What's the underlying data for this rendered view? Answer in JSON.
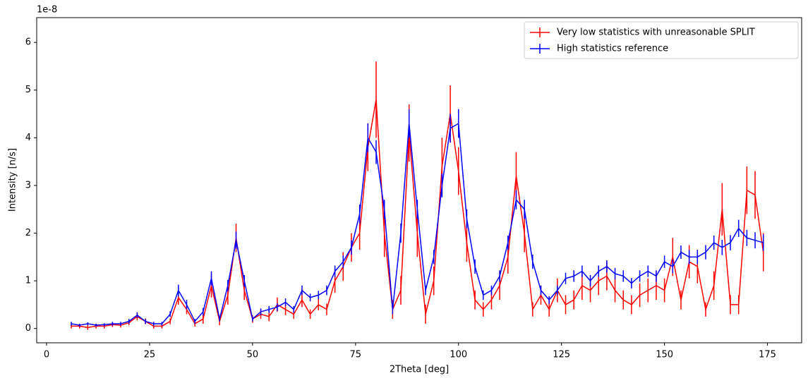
{
  "chart_data": {
    "type": "errorbar_line",
    "x_label": "2Theta [deg]",
    "y_label": "Intensity [n/s]",
    "y_offset_label": "1e-8",
    "xlim": [
      -2.4,
      183.3
    ],
    "ylim": [
      -0.3,
      6.52
    ],
    "xticks": [
      0,
      25,
      50,
      75,
      100,
      125,
      150,
      175
    ],
    "yticks": [
      0,
      1,
      2,
      3,
      4,
      5,
      6
    ],
    "legend": "upper right",
    "x": [
      6,
      8,
      10,
      12,
      14,
      16,
      18,
      20,
      22,
      24,
      26,
      28,
      30,
      32,
      34,
      36,
      38,
      40,
      42,
      44,
      46,
      48,
      50,
      52,
      54,
      56,
      58,
      60,
      62,
      64,
      66,
      68,
      70,
      72,
      74,
      76,
      78,
      80,
      82,
      84,
      86,
      88,
      90,
      92,
      94,
      96,
      98,
      100,
      102,
      104,
      106,
      108,
      110,
      112,
      114,
      116,
      118,
      120,
      122,
      124,
      126,
      128,
      130,
      132,
      134,
      136,
      138,
      140,
      142,
      144,
      146,
      148,
      150,
      152,
      154,
      156,
      158,
      160,
      162,
      164,
      166,
      168,
      170,
      172,
      174
    ],
    "series": [
      {
        "name": "Very low statistics with unreasonable SPLIT",
        "color": "#ff0000",
        "values": [
          0.05,
          0.05,
          0.02,
          0.05,
          0.05,
          0.08,
          0.07,
          0.12,
          0.25,
          0.15,
          0.05,
          0.05,
          0.15,
          0.65,
          0.4,
          0.1,
          0.2,
          0.9,
          0.15,
          0.7,
          1.9,
          0.8,
          0.2,
          0.3,
          0.25,
          0.5,
          0.4,
          0.3,
          0.6,
          0.3,
          0.5,
          0.4,
          1.0,
          1.3,
          1.7,
          2.0,
          3.8,
          4.8,
          2.0,
          0.4,
          0.8,
          4.1,
          2.0,
          0.3,
          1.0,
          3.4,
          4.5,
          3.3,
          1.8,
          0.6,
          0.4,
          0.6,
          0.9,
          1.5,
          3.2,
          2.0,
          0.4,
          0.7,
          0.4,
          0.8,
          0.5,
          0.6,
          0.9,
          0.8,
          1.0,
          1.1,
          0.8,
          0.6,
          0.5,
          0.7,
          0.8,
          0.9,
          0.8,
          1.5,
          0.6,
          1.4,
          1.3,
          0.4,
          0.9,
          2.5,
          0.5,
          0.5,
          2.9,
          2.8,
          1.6
        ],
        "errors": [
          0.05,
          0.05,
          0.05,
          0.05,
          0.05,
          0.05,
          0.05,
          0.05,
          0.08,
          0.06,
          0.05,
          0.05,
          0.06,
          0.15,
          0.1,
          0.06,
          0.1,
          0.25,
          0.08,
          0.2,
          0.3,
          0.2,
          0.08,
          0.1,
          0.1,
          0.15,
          0.12,
          0.1,
          0.15,
          0.1,
          0.12,
          0.12,
          0.25,
          0.3,
          0.3,
          0.35,
          0.5,
          0.8,
          0.5,
          0.2,
          0.3,
          0.6,
          0.5,
          0.2,
          0.3,
          0.6,
          0.6,
          0.5,
          0.4,
          0.2,
          0.15,
          0.2,
          0.3,
          0.35,
          0.5,
          0.4,
          0.15,
          0.2,
          0.15,
          0.25,
          0.2,
          0.2,
          0.3,
          0.25,
          0.3,
          0.3,
          0.25,
          0.2,
          0.2,
          0.25,
          0.25,
          0.3,
          0.25,
          0.4,
          0.2,
          0.35,
          0.35,
          0.15,
          0.3,
          0.55,
          0.2,
          0.2,
          0.5,
          0.5,
          0.4
        ]
      },
      {
        "name": "High statistics reference",
        "color": "#0000ff",
        "values": [
          0.1,
          0.07,
          0.1,
          0.07,
          0.08,
          0.1,
          0.1,
          0.15,
          0.28,
          0.15,
          0.1,
          0.1,
          0.3,
          0.8,
          0.5,
          0.15,
          0.35,
          1.05,
          0.2,
          0.9,
          1.85,
          1.0,
          0.2,
          0.35,
          0.4,
          0.45,
          0.55,
          0.4,
          0.8,
          0.65,
          0.7,
          0.8,
          1.2,
          1.4,
          1.7,
          2.4,
          4.0,
          3.7,
          2.5,
          0.4,
          2.0,
          4.3,
          2.5,
          0.8,
          1.5,
          3.0,
          4.2,
          4.3,
          2.3,
          1.3,
          0.7,
          0.8,
          1.1,
          1.8,
          2.7,
          2.5,
          1.4,
          0.8,
          0.6,
          0.8,
          1.05,
          1.1,
          1.2,
          1.0,
          1.2,
          1.3,
          1.15,
          1.1,
          0.95,
          1.1,
          1.2,
          1.1,
          1.4,
          1.3,
          1.6,
          1.5,
          1.5,
          1.6,
          1.8,
          1.7,
          1.8,
          2.1,
          1.9,
          1.85,
          1.8
        ],
        "errors": [
          0.04,
          0.03,
          0.03,
          0.03,
          0.03,
          0.04,
          0.04,
          0.05,
          0.06,
          0.05,
          0.04,
          0.04,
          0.06,
          0.12,
          0.1,
          0.05,
          0.08,
          0.15,
          0.05,
          0.12,
          0.18,
          0.12,
          0.05,
          0.07,
          0.07,
          0.08,
          0.08,
          0.07,
          0.1,
          0.08,
          0.09,
          0.1,
          0.12,
          0.13,
          0.15,
          0.2,
          0.3,
          0.25,
          0.2,
          0.1,
          0.2,
          0.3,
          0.2,
          0.1,
          0.15,
          0.25,
          0.3,
          0.3,
          0.2,
          0.15,
          0.1,
          0.1,
          0.12,
          0.15,
          0.2,
          0.2,
          0.15,
          0.1,
          0.08,
          0.1,
          0.12,
          0.12,
          0.12,
          0.12,
          0.12,
          0.13,
          0.12,
          0.12,
          0.11,
          0.12,
          0.12,
          0.12,
          0.13,
          0.14,
          0.14,
          0.15,
          0.15,
          0.15,
          0.15,
          0.16,
          0.16,
          0.18,
          0.17,
          0.17,
          0.17
        ]
      }
    ]
  }
}
